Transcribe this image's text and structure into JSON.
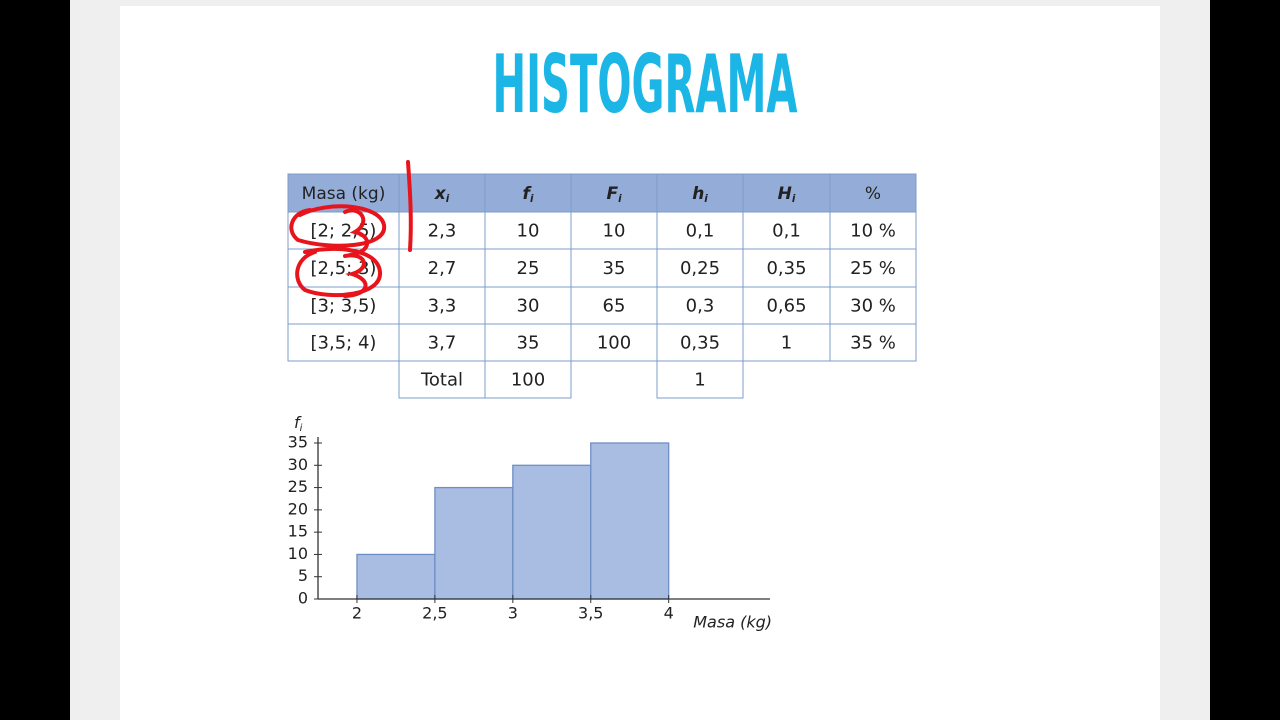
{
  "title": "HISTOGRAMA",
  "table": {
    "header": [
      "Masa (kg)",
      {
        "text": "x",
        "sub": "i"
      },
      {
        "text": "f",
        "sub": "i"
      },
      {
        "text": "F",
        "sub": "i"
      },
      {
        "text": "h",
        "sub": "i"
      },
      {
        "text": "H",
        "sub": "i"
      },
      "%"
    ],
    "rows": [
      [
        "[2; 2,5)",
        "2,3",
        "10",
        "10",
        "0,1",
        "0,1",
        "10 %"
      ],
      [
        "[2,5; 3)",
        "2,7",
        "25",
        "35",
        "0,25",
        "0,35",
        "25 %"
      ],
      [
        "[3; 3,5)",
        "3,3",
        "30",
        "65",
        "0,3",
        "0,65",
        "30 %"
      ],
      [
        "[3,5; 4)",
        "3,7",
        "35",
        "100",
        "0,35",
        "1",
        "35 %"
      ]
    ],
    "total": {
      "label": "Total",
      "f": "100",
      "h": "1"
    }
  },
  "chart_data": {
    "type": "histogram",
    "bins": [
      2,
      2.5,
      3,
      3.5,
      4
    ],
    "values": [
      10,
      25,
      30,
      35
    ],
    "color": "#a9bde3",
    "x_label": "Masa (kg)",
    "y_label": "f",
    "y_label_sub": "i",
    "xlim": [
      1.75,
      4.65
    ],
    "ylim": [
      0,
      35
    ],
    "xticks": [
      2,
      {
        "value": 2.5,
        "label": "2,5"
      },
      3,
      {
        "value": 3.5,
        "label": "3,5"
      },
      4
    ],
    "yticks": [
      0,
      5,
      10,
      15,
      20,
      25,
      30,
      35
    ]
  }
}
